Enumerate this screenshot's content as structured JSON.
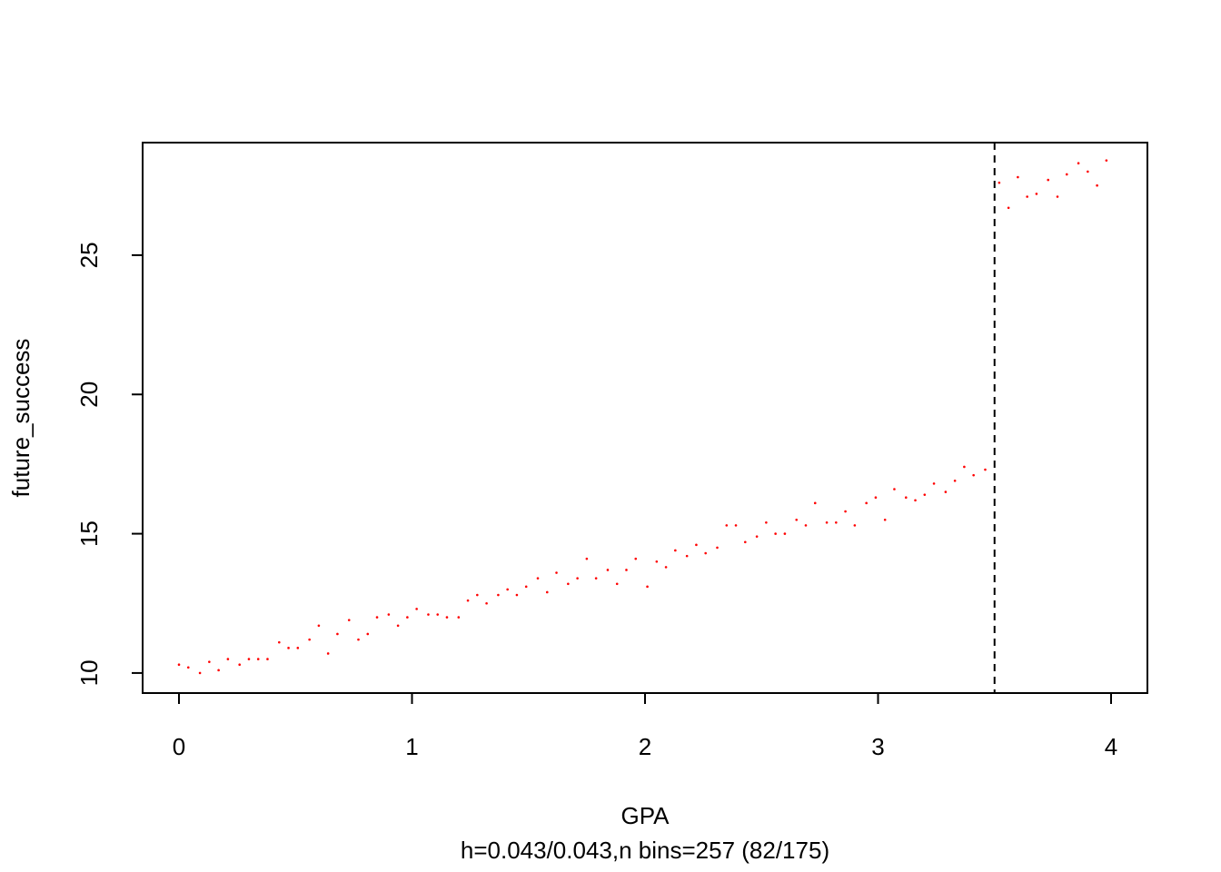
{
  "chart_data": {
    "type": "scatter",
    "xlabel": "GPA",
    "subtitle": "h=0.043/0.043,n bins=257 (82/175)",
    "ylabel": "future_success",
    "color": "#ff0000",
    "cutoff": 3.5,
    "xlim": [
      -0.156,
      4.156
    ],
    "ylim": [
      9.28,
      29.04
    ],
    "xticks": [
      0,
      1,
      2,
      3,
      4
    ],
    "yticks": [
      10,
      15,
      20,
      25
    ],
    "x": [
      0,
      0.04,
      0.09,
      0.13,
      0.17,
      0.21,
      0.26,
      0.3,
      0.34,
      0.38,
      0.43,
      0.47,
      0.51,
      0.56,
      0.6,
      0.64,
      0.68,
      0.73,
      0.77,
      0.81,
      0.85,
      0.9,
      0.94,
      0.98,
      1.02,
      1.07,
      1.11,
      1.15,
      1.2,
      1.24,
      1.28,
      1.32,
      1.37,
      1.41,
      1.45,
      1.49,
      1.54,
      1.58,
      1.62,
      1.67,
      1.71,
      1.75,
      1.79,
      1.84,
      1.88,
      1.92,
      1.96,
      2.01,
      2.05,
      2.09,
      2.13,
      2.18,
      2.22,
      2.26,
      2.31,
      2.35,
      2.39,
      2.43,
      2.48,
      2.52,
      2.56,
      2.6,
      2.65,
      2.69,
      2.73,
      2.78,
      2.82,
      2.86,
      2.9,
      2.95,
      2.99,
      3.03,
      3.07,
      3.12,
      3.16,
      3.2,
      3.24,
      3.29,
      3.33,
      3.37,
      3.41,
      3.46,
      3.52,
      3.56,
      3.6,
      3.64,
      3.68,
      3.73,
      3.77,
      3.81,
      3.86,
      3.9,
      3.94,
      3.98
    ],
    "y": [
      10.3,
      10.2,
      10.0,
      10.4,
      10.1,
      10.5,
      10.3,
      10.5,
      10.5,
      10.5,
      11.1,
      10.9,
      10.9,
      11.2,
      11.7,
      10.7,
      11.4,
      11.9,
      11.2,
      11.4,
      12.0,
      12.1,
      11.7,
      12.0,
      12.3,
      12.1,
      12.1,
      12.0,
      12.0,
      12.6,
      12.8,
      12.5,
      12.8,
      13.0,
      12.8,
      13.1,
      13.4,
      12.9,
      13.6,
      13.2,
      13.4,
      14.1,
      13.4,
      13.7,
      13.2,
      13.7,
      14.1,
      13.1,
      14.0,
      13.8,
      14.4,
      14.2,
      14.6,
      14.3,
      14.5,
      15.3,
      15.3,
      14.7,
      14.9,
      15.4,
      15.0,
      15.0,
      15.5,
      15.3,
      16.1,
      15.4,
      15.4,
      15.8,
      15.3,
      16.1,
      16.3,
      15.5,
      16.6,
      16.3,
      16.2,
      16.4,
      16.8,
      16.5,
      16.9,
      17.4,
      17.1,
      17.3,
      27.6,
      26.7,
      27.8,
      27.1,
      27.2,
      27.7,
      27.1,
      27.9,
      28.3,
      28.0,
      27.5,
      28.4
    ]
  }
}
